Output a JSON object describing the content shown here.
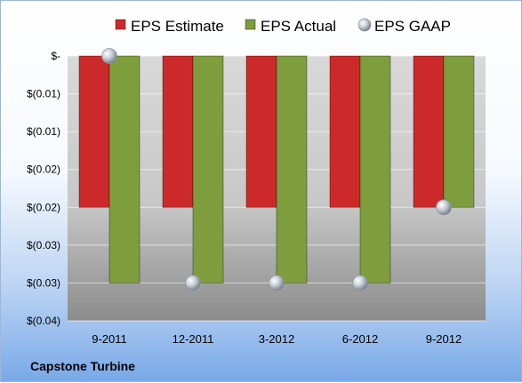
{
  "chart_data": {
    "type": "bar",
    "title": "",
    "company": "Capstone Turbine",
    "categories": [
      "9-2011",
      "12-2011",
      "3-2012",
      "6-2012",
      "9-2012"
    ],
    "series": [
      {
        "name": "EPS Estimate",
        "type": "bar",
        "values": [
          -0.02,
          -0.02,
          -0.02,
          -0.02,
          -0.02
        ],
        "color": "#cc2a2a"
      },
      {
        "name": "EPS Actual",
        "type": "bar",
        "values": [
          -0.03,
          -0.03,
          -0.03,
          -0.03,
          -0.02
        ],
        "color": "#7e9e3e"
      },
      {
        "name": "EPS GAAP",
        "type": "marker",
        "values": [
          0.0,
          -0.03,
          -0.03,
          -0.03,
          -0.02
        ],
        "color": "#b8bfc8"
      }
    ],
    "yticks": [
      "$-",
      "$(0.01)",
      "$(0.01)",
      "$(0.02)",
      "$(0.02)",
      "$(0.03)",
      "$(0.03)",
      "$(0.04)"
    ],
    "ylim": [
      -0.035,
      0
    ],
    "ytick_step": 0.005,
    "legend_position": "top",
    "grid": true
  }
}
